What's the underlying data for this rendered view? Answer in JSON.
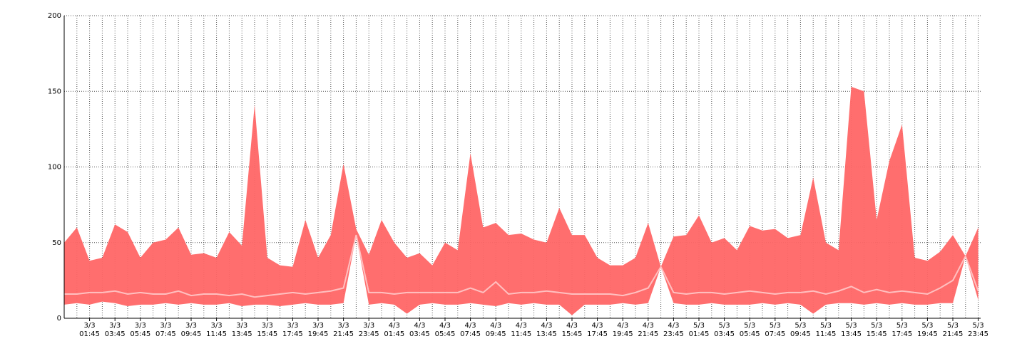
{
  "chart_data": {
    "type": "band",
    "x": [
      "2/3 23:45",
      "3/3 00:45",
      "3/3 01:45",
      "3/3 02:45",
      "3/3 03:45",
      "3/3 04:45",
      "3/3 05:45",
      "3/3 06:45",
      "3/3 07:45",
      "3/3 08:45",
      "3/3 09:45",
      "3/3 10:45",
      "3/3 11:45",
      "3/3 12:45",
      "3/3 13:45",
      "3/3 14:45",
      "3/3 15:45",
      "3/3 16:45",
      "3/3 17:45",
      "3/3 18:45",
      "3/3 19:45",
      "3/3 20:45",
      "3/3 21:45",
      "3/3 22:45",
      "3/3 23:45",
      "4/3 00:45",
      "4/3 01:45",
      "4/3 02:45",
      "4/3 03:45",
      "4/3 04:45",
      "4/3 05:45",
      "4/3 06:45",
      "4/3 07:45",
      "4/3 08:45",
      "4/3 09:45",
      "4/3 10:45",
      "4/3 11:45",
      "4/3 12:45",
      "4/3 13:45",
      "4/3 14:45",
      "4/3 15:45",
      "4/3 16:45",
      "4/3 17:45",
      "4/3 18:45",
      "4/3 19:45",
      "4/3 20:45",
      "4/3 21:45",
      "4/3 22:45",
      "4/3 23:45",
      "5/3 00:45",
      "5/3 01:45",
      "5/3 02:45",
      "5/3 03:45",
      "5/3 04:45",
      "5/3 05:45",
      "5/3 06:45",
      "5/3 07:45",
      "5/3 08:45",
      "5/3 09:45",
      "5/3 10:45",
      "5/3 11:45",
      "5/3 12:45",
      "5/3 13:45",
      "5/3 14:45",
      "5/3 15:45",
      "5/3 16:45",
      "5/3 17:45",
      "5/3 18:45",
      "5/3 19:45",
      "5/3 20:45",
      "5/3 21:45",
      "5/3 22:45",
      "5/3 23:45"
    ],
    "xticks": [
      "3/3 01:45",
      "3/3 03:45",
      "3/3 05:45",
      "3/3 07:45",
      "3/3 09:45",
      "3/3 11:45",
      "3/3 13:45",
      "3/3 15:45",
      "3/3 17:45",
      "3/3 19:45",
      "3/3 21:45",
      "3/3 23:45",
      "4/3 01:45",
      "4/3 03:45",
      "4/3 05:45",
      "4/3 07:45",
      "4/3 09:45",
      "4/3 11:45",
      "4/3 13:45",
      "4/3 15:45",
      "4/3 17:45",
      "4/3 19:45",
      "4/3 21:45",
      "4/3 23:45",
      "5/3 01:45",
      "5/3 03:45",
      "5/3 05:45",
      "5/3 07:45",
      "5/3 09:45",
      "5/3 11:45",
      "5/3 13:45",
      "5/3 15:45",
      "5/3 17:45",
      "5/3 19:45",
      "5/3 21:45",
      "5/3 23:45"
    ],
    "series": [
      {
        "color": "#ff6666",
        "values": [
          50,
          60,
          38,
          40,
          62,
          57,
          40,
          50,
          52,
          60,
          42,
          43,
          40,
          57,
          48,
          141,
          40,
          35,
          34,
          65,
          40,
          55,
          102,
          59,
          42,
          65,
          50,
          40,
          43,
          35,
          50,
          45,
          109,
          60,
          63,
          55,
          56,
          52,
          50,
          73,
          55,
          55,
          40,
          35,
          35,
          40,
          63,
          34,
          54,
          55,
          68,
          50,
          53,
          45,
          61,
          58,
          59,
          53,
          55,
          93,
          50,
          45,
          153,
          150,
          65,
          104,
          128,
          40,
          38,
          44,
          55,
          41,
          60
        ]
      },
      {
        "color": "#ff6666",
        "values": [
          9,
          10,
          9,
          11,
          10,
          8,
          9,
          9,
          10,
          9,
          10,
          9,
          9,
          10,
          8,
          9,
          9,
          8,
          9,
          10,
          9,
          9,
          10,
          55,
          9,
          10,
          9,
          3,
          9,
          10,
          9,
          9,
          10,
          9,
          8,
          10,
          9,
          10,
          9,
          9,
          2,
          9,
          9,
          9,
          10,
          9,
          10,
          34,
          10,
          9,
          9,
          10,
          9,
          9,
          9,
          10,
          9,
          10,
          9,
          3,
          9,
          10,
          10,
          9,
          10,
          9,
          10,
          9,
          9,
          10,
          10,
          41,
          12
        ]
      },
      {
        "color": "#ffc0c0",
        "values": [
          16,
          16,
          17,
          17,
          18,
          16,
          17,
          16,
          16,
          18,
          15,
          16,
          16,
          15,
          16,
          14,
          15,
          16,
          17,
          16,
          17,
          18,
          20,
          55,
          17,
          17,
          16,
          17,
          17,
          17,
          17,
          17,
          20,
          17,
          24,
          16,
          17,
          17,
          18,
          17,
          16,
          16,
          16,
          16,
          15,
          17,
          20,
          34,
          17,
          16,
          17,
          17,
          16,
          17,
          18,
          17,
          16,
          17,
          17,
          18,
          16,
          18,
          21,
          17,
          19,
          17,
          18,
          17,
          16,
          20,
          25,
          41,
          18
        ]
      }
    ],
    "ylim": [
      0,
      200
    ],
    "yticks": [
      0,
      50,
      100,
      150,
      200
    ],
    "grid": true
  }
}
